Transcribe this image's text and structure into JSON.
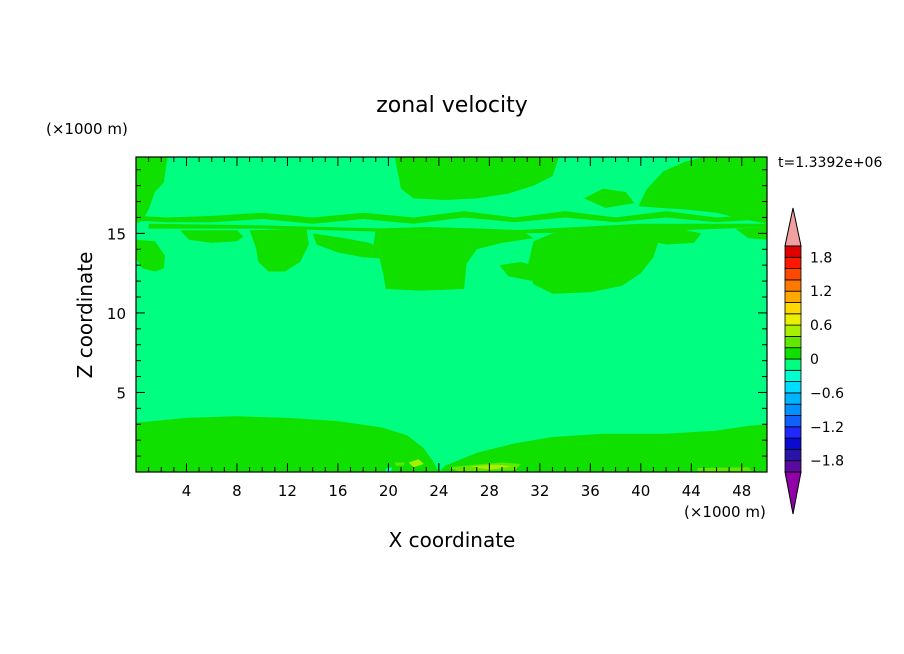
{
  "chart_data": {
    "type": "heatmap",
    "title": "zonal velocity",
    "xlabel": "X coordinate",
    "ylabel": "Z coordinate",
    "x_unit": "(×1000 m)",
    "y_unit": "(×1000 m)",
    "time_label": "t=1.3392e+06",
    "xlim": [
      0,
      50
    ],
    "ylim": [
      0,
      19.8
    ],
    "x_ticks": [
      4,
      8,
      12,
      16,
      20,
      24,
      28,
      32,
      36,
      40,
      44,
      48
    ],
    "y_ticks": [
      5,
      10,
      15
    ],
    "background_value": -0.1,
    "background_color": "#00ff80",
    "colorbar": {
      "levels": [
        -2.0,
        -1.8,
        -1.6,
        -1.4,
        -1.2,
        -1.0,
        -0.8,
        -0.6,
        -0.4,
        -0.2,
        0.0,
        0.2,
        0.4,
        0.6,
        0.8,
        1.0,
        1.2,
        1.4,
        1.6,
        1.8,
        2.0
      ],
      "colors": [
        "#5a0aa0",
        "#2a14a8",
        "#0a0ad2",
        "#1e28ff",
        "#1060ff",
        "#0090ff",
        "#00b4ff",
        "#00dcff",
        "#00ffd0",
        "#00ff80",
        "#10e000",
        "#60e800",
        "#a8f000",
        "#e8f000",
        "#ffd800",
        "#ffa800",
        "#ff7800",
        "#ff4800",
        "#ff1800",
        "#e00000"
      ],
      "tick_labels": [
        "1.8",
        "1.2",
        "0.6",
        "0",
        "−0.6",
        "−1.2",
        "−1.8"
      ],
      "tick_values": [
        1.8,
        1.2,
        0.6,
        0,
        -0.6,
        -1.2,
        -1.8
      ],
      "over_color": "#f0a0a0",
      "under_color": "#9000a8"
    },
    "regions": [
      {
        "value": 0.1,
        "points": [
          [
            0,
            15.6
          ],
          [
            0,
            19.8
          ],
          [
            2.5,
            19.8
          ],
          [
            2.2,
            18.2
          ],
          [
            1.5,
            17.6
          ],
          [
            1.0,
            16.5
          ],
          [
            0.5,
            15.8
          ]
        ]
      },
      {
        "value": 0.1,
        "points": [
          [
            20.5,
            19.8
          ],
          [
            33.5,
            19.8
          ],
          [
            33.0,
            18.6
          ],
          [
            31.5,
            18.0
          ],
          [
            29.5,
            17.5
          ],
          [
            27.0,
            17.2
          ],
          [
            24.5,
            17.1
          ],
          [
            22.0,
            17.2
          ],
          [
            21.0,
            17.8
          ]
        ]
      },
      {
        "value": 0.1,
        "points": [
          [
            39.8,
            16.7
          ],
          [
            40.5,
            17.8
          ],
          [
            41.8,
            18.9
          ],
          [
            43.5,
            19.5
          ],
          [
            45.0,
            19.8
          ],
          [
            50,
            19.8
          ],
          [
            50,
            15.6
          ],
          [
            48.0,
            15.9
          ],
          [
            46.0,
            16.3
          ],
          [
            43.5,
            16.5
          ],
          [
            41.5,
            16.6
          ]
        ]
      },
      {
        "value": 0.1,
        "points": [
          [
            35.5,
            17.2
          ],
          [
            37.0,
            17.8
          ],
          [
            38.8,
            17.6
          ],
          [
            39.5,
            16.9
          ],
          [
            37.2,
            16.6
          ]
        ]
      },
      {
        "value": 0.1,
        "points": [
          [
            1.0,
            15.6
          ],
          [
            10.0,
            15.5
          ],
          [
            20.0,
            15.3
          ],
          [
            30.0,
            15.2
          ],
          [
            40.0,
            15.6
          ],
          [
            50,
            15.6
          ],
          [
            50,
            15.4
          ],
          [
            40.0,
            15.1
          ],
          [
            30.0,
            15.0
          ],
          [
            20.0,
            15.1
          ],
          [
            10.0,
            15.3
          ],
          [
            1.0,
            15.3
          ]
        ]
      },
      {
        "value": 0.1,
        "points": [
          [
            0,
            16.1
          ],
          [
            2.5,
            16.0
          ],
          [
            6.0,
            16.1
          ],
          [
            10.0,
            16.3
          ],
          [
            14.0,
            16.0
          ],
          [
            18.0,
            16.3
          ],
          [
            22.0,
            16.0
          ],
          [
            26.0,
            16.4
          ],
          [
            30.0,
            16.0
          ],
          [
            34.0,
            16.4
          ],
          [
            38.0,
            16.0
          ],
          [
            42.0,
            16.4
          ],
          [
            46.0,
            16.0
          ],
          [
            50,
            16.2
          ],
          [
            50,
            15.9
          ],
          [
            46.0,
            15.7
          ],
          [
            42.0,
            16.0
          ],
          [
            38.0,
            15.7
          ],
          [
            34.0,
            16.0
          ],
          [
            30.0,
            15.7
          ],
          [
            26.0,
            16.0
          ],
          [
            22.0,
            15.6
          ],
          [
            18.0,
            15.9
          ],
          [
            14.0,
            15.6
          ],
          [
            10.0,
            15.9
          ],
          [
            6.0,
            15.7
          ],
          [
            2.5,
            15.7
          ],
          [
            0,
            15.8
          ]
        ]
      },
      {
        "value": 0.1,
        "points": [
          [
            3.5,
            15.2
          ],
          [
            8.0,
            15.2
          ],
          [
            8.5,
            14.8
          ],
          [
            8.0,
            14.5
          ],
          [
            6.0,
            14.4
          ],
          [
            4.2,
            14.6
          ]
        ]
      },
      {
        "value": 0.1,
        "points": [
          [
            0,
            14.6
          ],
          [
            1.5,
            14.5
          ],
          [
            2.3,
            13.6
          ],
          [
            2.2,
            12.8
          ],
          [
            1.5,
            12.6
          ],
          [
            0.5,
            12.8
          ],
          [
            0,
            13.4
          ]
        ]
      },
      {
        "value": 0.1,
        "points": [
          [
            9.0,
            15.2
          ],
          [
            13.5,
            15.3
          ],
          [
            13.7,
            14.3
          ],
          [
            13.0,
            13.2
          ],
          [
            11.8,
            12.6
          ],
          [
            10.5,
            12.6
          ],
          [
            9.7,
            13.2
          ],
          [
            9.5,
            14.1
          ]
        ]
      },
      {
        "value": 0.1,
        "points": [
          [
            14.0,
            15.0
          ],
          [
            16.5,
            14.7
          ],
          [
            18.5,
            14.4
          ],
          [
            20.0,
            13.8
          ],
          [
            19.8,
            13.4
          ],
          [
            18.0,
            13.5
          ],
          [
            16.0,
            13.8
          ],
          [
            14.3,
            14.3
          ]
        ]
      },
      {
        "value": 0.1,
        "points": [
          [
            19.0,
            15.3
          ],
          [
            23.0,
            15.4
          ],
          [
            27.5,
            15.3
          ],
          [
            30.5,
            15.2
          ],
          [
            31.5,
            14.7
          ],
          [
            29.0,
            14.4
          ],
          [
            27.0,
            14.0
          ],
          [
            26.2,
            13.1
          ],
          [
            26.0,
            11.5
          ],
          [
            22.5,
            11.4
          ],
          [
            19.8,
            11.5
          ],
          [
            19.6,
            12.4
          ],
          [
            19.3,
            13.4
          ],
          [
            18.8,
            14.2
          ]
        ]
      },
      {
        "value": 0.1,
        "points": [
          [
            28.8,
            13.0
          ],
          [
            30.5,
            13.2
          ],
          [
            32.3,
            12.8
          ],
          [
            31.5,
            12.0
          ],
          [
            29.5,
            12.3
          ]
        ]
      },
      {
        "value": 0.1,
        "points": [
          [
            31.5,
            14.5
          ],
          [
            33.0,
            15.0
          ],
          [
            36.0,
            15.3
          ],
          [
            40.0,
            15.3
          ],
          [
            41.5,
            14.7
          ],
          [
            41.0,
            13.5
          ],
          [
            40.0,
            12.5
          ],
          [
            38.5,
            11.7
          ],
          [
            36.0,
            11.3
          ],
          [
            33.0,
            11.2
          ],
          [
            31.5,
            11.8
          ],
          [
            31.0,
            12.8
          ]
        ]
      },
      {
        "value": 0.1,
        "points": [
          [
            40.5,
            15.2
          ],
          [
            43.0,
            15.3
          ],
          [
            44.8,
            15.0
          ],
          [
            44.2,
            14.4
          ],
          [
            42.0,
            14.3
          ],
          [
            40.8,
            14.5
          ]
        ]
      },
      {
        "value": 0.1,
        "points": [
          [
            47.5,
            15.3
          ],
          [
            50,
            15.4
          ],
          [
            50,
            14.6
          ],
          [
            48.5,
            14.7
          ]
        ]
      },
      {
        "value": 0.1,
        "points": [
          [
            0,
            0
          ],
          [
            0,
            3.1
          ],
          [
            4.0,
            3.4
          ],
          [
            8.0,
            3.5
          ],
          [
            12.0,
            3.4
          ],
          [
            16.0,
            3.2
          ],
          [
            19.5,
            2.8
          ],
          [
            21.5,
            2.3
          ],
          [
            22.8,
            1.5
          ],
          [
            23.6,
            0.6
          ],
          [
            24.0,
            0
          ],
          [
            24.5,
            0.4
          ],
          [
            27.0,
            1.2
          ],
          [
            30.0,
            1.8
          ],
          [
            33.0,
            2.2
          ],
          [
            37.0,
            2.4
          ],
          [
            42.0,
            2.4
          ],
          [
            46.0,
            2.6
          ],
          [
            48.5,
            2.9
          ],
          [
            50,
            3.0
          ],
          [
            50,
            0
          ]
        ]
      },
      {
        "value": 0.3,
        "points": [
          [
            20.5,
            0.6
          ],
          [
            21.3,
            0.6
          ],
          [
            21.2,
            0.4
          ],
          [
            20.6,
            0.4
          ]
        ]
      },
      {
        "value": 0.3,
        "points": [
          [
            24.8,
            0.3
          ],
          [
            27.5,
            0.5
          ],
          [
            29.0,
            0.6
          ],
          [
            30.5,
            0.5
          ],
          [
            30.0,
            0.1
          ],
          [
            25.5,
            0.05
          ]
        ]
      },
      {
        "value": 0.5,
        "points": [
          [
            21.6,
            0.6
          ],
          [
            22.4,
            0.8
          ],
          [
            22.8,
            0.5
          ],
          [
            22.0,
            0.3
          ]
        ]
      },
      {
        "value": 0.5,
        "points": [
          [
            26.5,
            0.35
          ],
          [
            28.5,
            0.45
          ],
          [
            29.8,
            0.35
          ],
          [
            28.0,
            0.15
          ]
        ]
      },
      {
        "value": 0.3,
        "points": [
          [
            44.5,
            0.25
          ],
          [
            48.5,
            0.3
          ],
          [
            48.8,
            0.05
          ],
          [
            44.5,
            0.05
          ]
        ]
      },
      {
        "value": -0.3,
        "points": [
          [
            19.8,
            0.2
          ],
          [
            20.3,
            0.3
          ],
          [
            20.2,
            0.05
          ],
          [
            19.8,
            0.05
          ]
        ]
      }
    ]
  }
}
